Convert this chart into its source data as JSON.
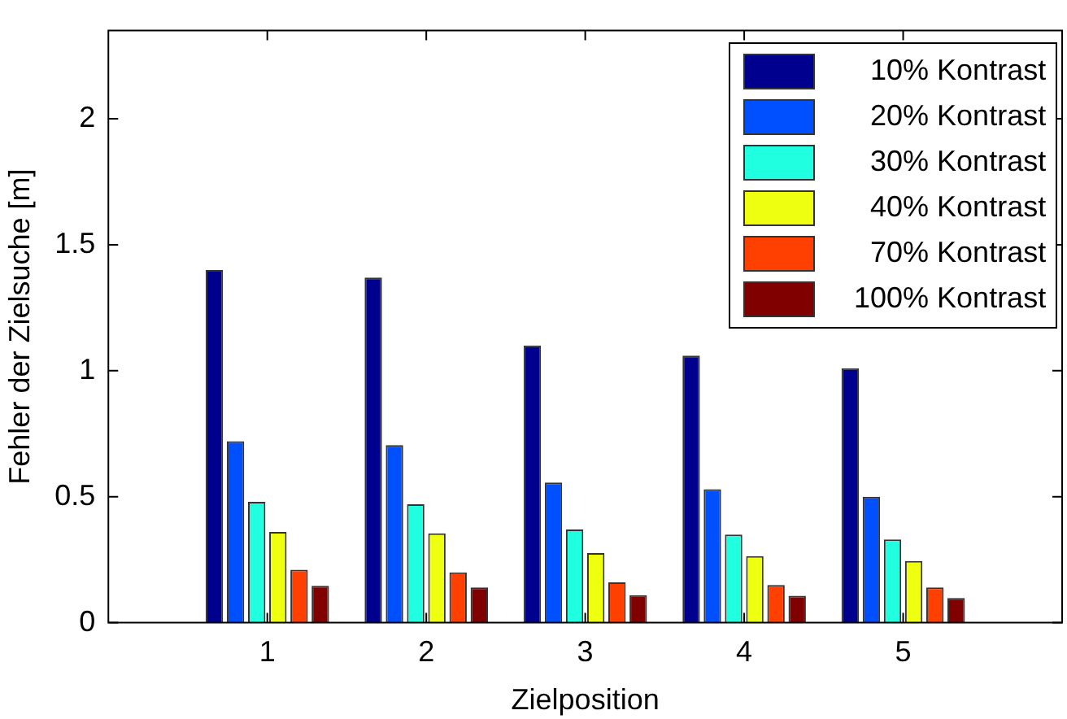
{
  "chart_data": {
    "type": "bar",
    "xlabel": "Zielposition",
    "ylabel": "Fehler der Zielsuche [m]",
    "x": [
      1,
      2,
      3,
      4,
      5
    ],
    "xlim": [
      0,
      6
    ],
    "xticks": [
      1,
      2,
      3,
      4,
      5
    ],
    "ylim": [
      0,
      2.35
    ],
    "yticks": [
      0,
      0.5,
      1,
      1.5,
      2
    ],
    "series": [
      {
        "name": "10% Kontrast",
        "color": "#00008f",
        "values": [
          1.4,
          1.37,
          1.1,
          1.06,
          1.01
        ]
      },
      {
        "name": "20% Kontrast",
        "color": "#0050ff",
        "values": [
          0.72,
          0.705,
          0.556,
          0.53,
          0.5
        ]
      },
      {
        "name": "30% Kontrast",
        "color": "#20ffdf",
        "values": [
          0.48,
          0.47,
          0.37,
          0.35,
          0.33
        ]
      },
      {
        "name": "40% Kontrast",
        "color": "#efff10",
        "values": [
          0.36,
          0.355,
          0.276,
          0.264,
          0.245
        ]
      },
      {
        "name": "70% Kontrast",
        "color": "#ff4000",
        "values": [
          0.21,
          0.2,
          0.16,
          0.15,
          0.14
        ]
      },
      {
        "name": "100% Kontrast",
        "color": "#800000",
        "values": [
          0.146,
          0.14,
          0.109,
          0.107,
          0.098
        ]
      }
    ],
    "legend": "top right",
    "grid": false
  }
}
